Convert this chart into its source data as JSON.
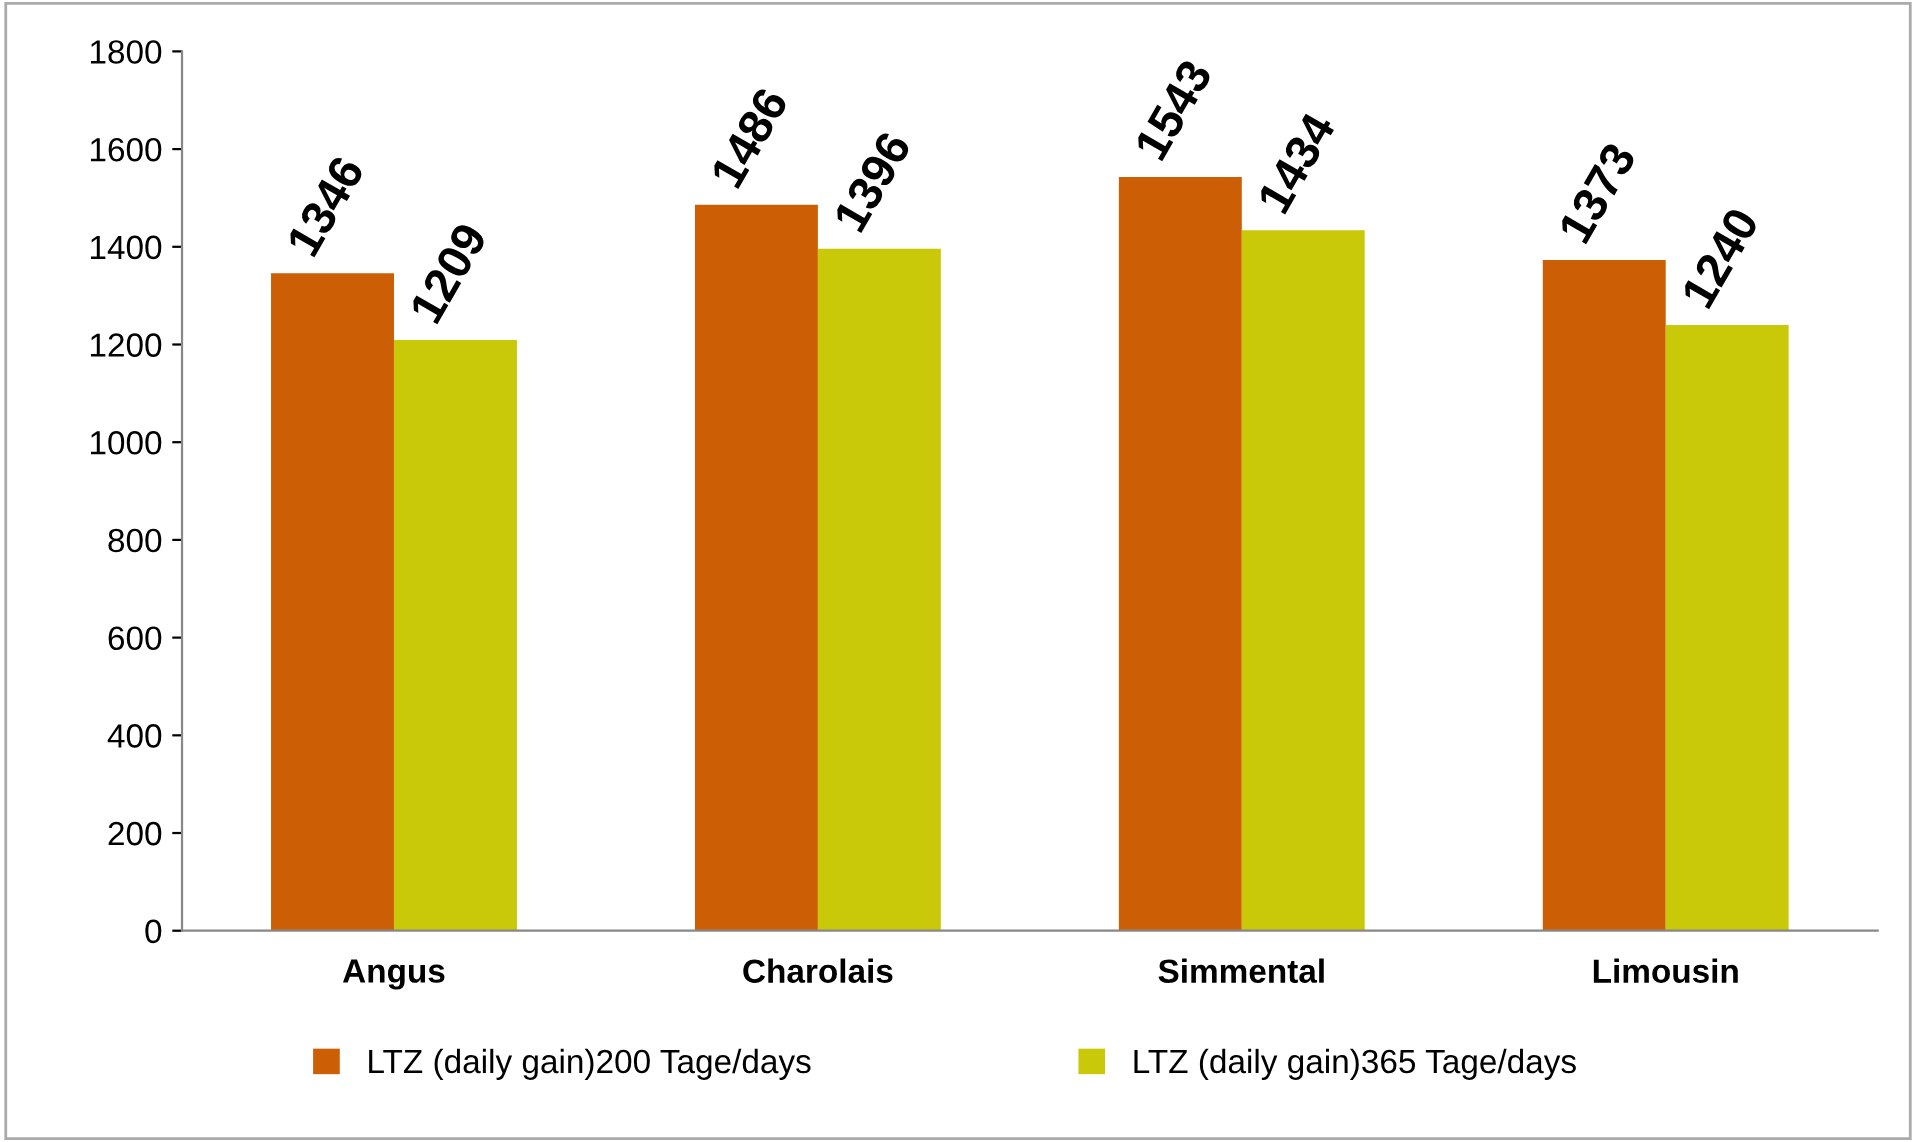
{
  "chart_data": {
    "type": "bar",
    "categories": [
      "Angus",
      "Charolais",
      "Simmental",
      "Limousin"
    ],
    "series": [
      {
        "name": "LTZ (daily gain)200 Tage/days",
        "color": "#cc5f05",
        "values": [
          1346,
          1486,
          1543,
          1373
        ]
      },
      {
        "name": "LTZ (daily gain)365 Tage/days",
        "color": "#c9c90a",
        "values": [
          1209,
          1396,
          1434,
          1240
        ]
      }
    ],
    "ylim": [
      0,
      1800
    ],
    "yticks": [
      0,
      200,
      400,
      600,
      800,
      1000,
      1200,
      1400,
      1600,
      1800
    ],
    "data_labels": true,
    "grid": false,
    "legend": "bottom"
  }
}
